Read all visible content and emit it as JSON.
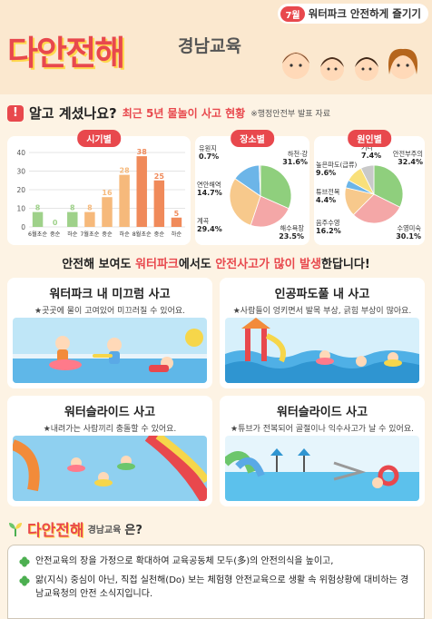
{
  "header": {
    "badge_num": "7월",
    "badge_text": "워터파크 안전하게 즐기기",
    "logo": "다안전해",
    "logo_sub": "경남교육"
  },
  "section": {
    "title": "알고 계셨나요?",
    "subtitle": "최근 5년 물놀이 사고 현황",
    "source": "※행정안전부 발표 자료"
  },
  "chart_data": [
    {
      "type": "bar",
      "title": "시기별",
      "categories": [
        "6월초순",
        "중순",
        "하순",
        "7월초순",
        "중순",
        "하순",
        "8월초순",
        "중순",
        "하순"
      ],
      "values": [
        8,
        0,
        8,
        8,
        16,
        28,
        38,
        25,
        5
      ],
      "ylim": [
        0,
        40
      ],
      "yticks": [
        "0",
        "10",
        "20",
        "30",
        "40"
      ]
    },
    {
      "type": "pie",
      "title": "장소별",
      "labels": [
        "하천·강",
        "해수욕장",
        "계곡",
        "연안해역",
        "유원지"
      ],
      "values": [
        31.6,
        23.5,
        29.4,
        14.7,
        0.7
      ],
      "value_labels": [
        "31.6%",
        "23.5%",
        "29.4%",
        "14.7%",
        "0.7%"
      ],
      "colors": [
        "#8fcf7d",
        "#f4a7a7",
        "#f7c98c",
        "#6cb5e8",
        "#c9c9c9"
      ]
    },
    {
      "type": "pie",
      "title": "원인별",
      "labels": [
        "안전부주의",
        "수영미숙",
        "음주수영",
        "튜브전복",
        "높은파도(급류)",
        "기타"
      ],
      "values": [
        32.4,
        30.1,
        16.2,
        4.4,
        9.6,
        7.4
      ],
      "value_labels": [
        "32.4%",
        "30.1%",
        "16.2%",
        "4.4%",
        "9.6%",
        "7.4%"
      ],
      "colors": [
        "#8fcf7d",
        "#f4a7a7",
        "#f7c98c",
        "#6cb5e8",
        "#f9e07a",
        "#c9c9c9"
      ]
    }
  ],
  "headline": {
    "p1": "안전해 보여도 ",
    "p2": "워터파크",
    "p3": "에서도 ",
    "p4": "안전사고가 많이 발생",
    "p5": "한답니다!"
  },
  "panels": [
    {
      "title": "워터파크 내 미끄럼 사고",
      "desc": "★곳곳에 물이 고여있어 미끄러질 수 있어요."
    },
    {
      "title": "인공파도풀 내 사고",
      "desc": "★사람들이 엉키면서 발목 부상, 긁힘 부상이 많아요."
    },
    {
      "title": "워터슬라이드 사고",
      "desc": "★내려가는 사람끼리 충돌할 수 있어요."
    },
    {
      "title": "워터슬라이드 사고",
      "desc": "★튜브가 전복되어 골절이나 익수사고가 날 수 있어요."
    }
  ],
  "footer": {
    "logo": "다안전해",
    "logo_sub": "경남교육",
    "question": "은?",
    "line1": "안전교육의 장을 가정으로 확대하여 교육공동체 모두(多)의 안전의식을 높이고,",
    "line2": "앎(지식) 중심이 아닌, 직접 실천해(Do) 보는 체험형 안전교육으로 생활 속 위험상황에 대비하는 경남교육청의 안전 소식지입니다."
  }
}
